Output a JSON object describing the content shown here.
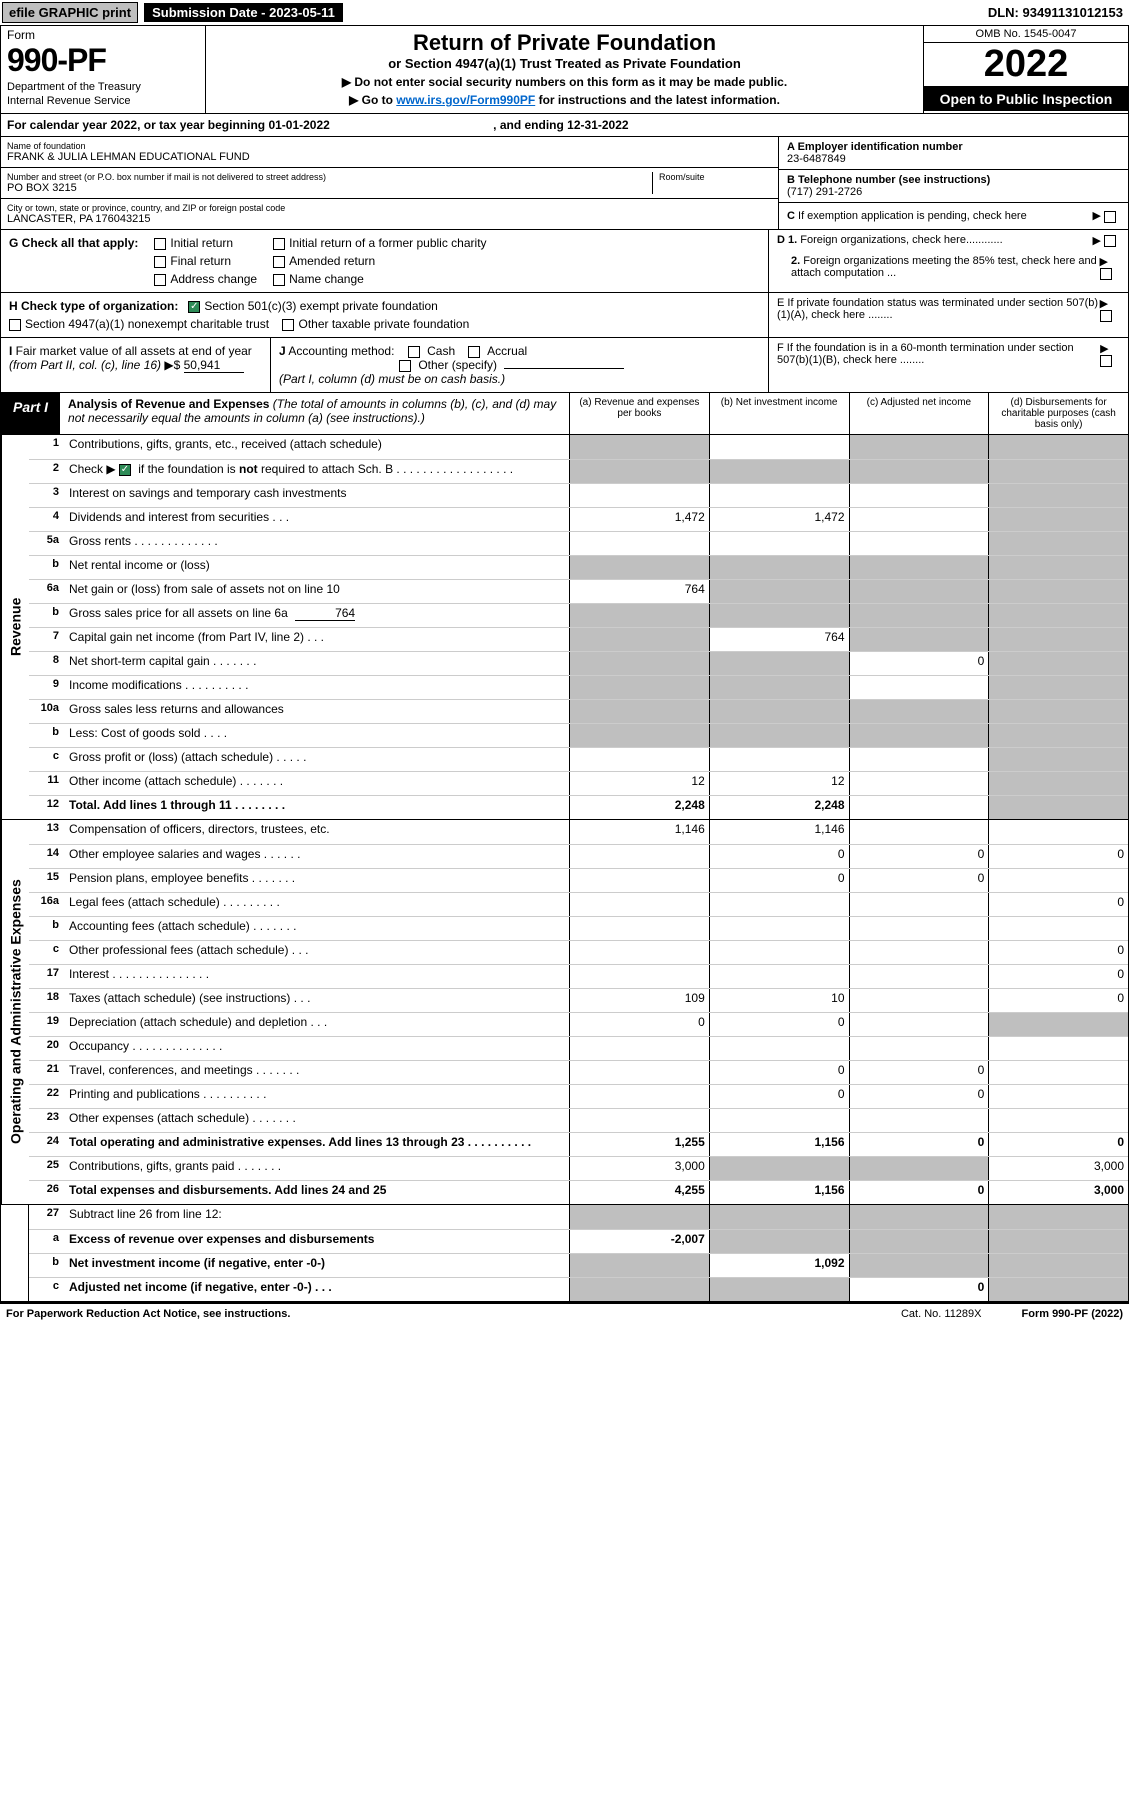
{
  "top": {
    "efile": "efile GRAPHIC print",
    "submission": "Submission Date - 2023-05-11",
    "dln": "DLN: 93491131012153"
  },
  "header": {
    "form_label": "Form",
    "form_num": "990-PF",
    "dept": "Department of the Treasury",
    "irs": "Internal Revenue Service",
    "title": "Return of Private Foundation",
    "subtitle": "or Section 4947(a)(1) Trust Treated as Private Foundation",
    "note1": "▶ Do not enter social security numbers on this form as it may be made public.",
    "note2_pre": "▶ Go to ",
    "note2_link": "www.irs.gov/Form990PF",
    "note2_post": " for instructions and the latest information.",
    "omb": "OMB No. 1545-0047",
    "year": "2022",
    "open": "Open to Public Inspection"
  },
  "cal": {
    "line": "For calendar year 2022, or tax year beginning 01-01-2022",
    "ending": ", and ending 12-31-2022"
  },
  "foundation": {
    "name_label": "Name of foundation",
    "name": "FRANK & JULIA LEHMAN EDUCATIONAL FUND",
    "addr_label": "Number and street (or P.O. box number if mail is not delivered to street address)",
    "addr": "PO BOX 3215",
    "room_label": "Room/suite",
    "city_label": "City or town, state or province, country, and ZIP or foreign postal code",
    "city": "LANCASTER, PA  176043215",
    "ein_label": "A Employer identification number",
    "ein": "23-6487849",
    "phone_label": "B Telephone number (see instructions)",
    "phone": "(717) 291-2726",
    "c_label": "C If exemption application is pending, check here"
  },
  "g": {
    "label": "G Check all that apply:",
    "initial": "Initial return",
    "initial_former": "Initial return of a former public charity",
    "final": "Final return",
    "amended": "Amended return",
    "address": "Address change",
    "name_change": "Name change"
  },
  "d": {
    "d1": "D 1. Foreign organizations, check here............",
    "d2": "2. Foreign organizations meeting the 85% test, check here and attach computation ..."
  },
  "h": {
    "label": "H Check type of organization:",
    "sec501": "Section 501(c)(3) exempt private foundation",
    "sec4947": "Section 4947(a)(1) nonexempt charitable trust",
    "other_taxable": "Other taxable private foundation"
  },
  "e": {
    "label": "E  If private foundation status was terminated under section 507(b)(1)(A), check here ........"
  },
  "i": {
    "label": "I Fair market value of all assets at end of year (from Part II, col. (c), line 16) ▶$",
    "value": "50,941"
  },
  "j": {
    "label": "J Accounting method:",
    "cash": "Cash",
    "accrual": "Accrual",
    "other": "Other (specify)",
    "note": "(Part I, column (d) must be on cash basis.)"
  },
  "f": {
    "label": "F  If the foundation is in a 60-month termination under section 507(b)(1)(B), check here ........"
  },
  "part1": {
    "label": "Part I",
    "title": "Analysis of Revenue and Expenses",
    "note": "(The total of amounts in columns (b), (c), and (d) may not necessarily equal the amounts in column (a) (see instructions).)",
    "col_a": "(a)   Revenue and expenses per books",
    "col_b": "(b)   Net investment income",
    "col_c": "(c)   Adjusted net income",
    "col_d": "(d)   Disbursements for charitable purposes (cash basis only)"
  },
  "side": {
    "revenue": "Revenue",
    "expenses": "Operating and Administrative Expenses"
  },
  "rows": {
    "r1": {
      "n": "1",
      "d": "Contributions, gifts, grants, etc., received (attach schedule)"
    },
    "r2": {
      "n": "2",
      "d_pre": "Check ▶ ",
      "d_post": " if the foundation is not required to attach Sch. B    .   .   .   .   .   .   .   .   .   .   .   .   .   .   .   .   .   .",
      "d_bold_not": "not"
    },
    "r3": {
      "n": "3",
      "d": "Interest on savings and temporary cash investments"
    },
    "r4": {
      "n": "4",
      "d": "Dividends and interest from securities    .    .    .",
      "a": "1,472",
      "b": "1,472"
    },
    "r5a": {
      "n": "5a",
      "d": "Gross rents    .   .   .   .   .   .   .   .   .   .   .   .   ."
    },
    "r5b": {
      "n": "b",
      "d": "Net rental income or (loss) "
    },
    "r6a": {
      "n": "6a",
      "d": "Net gain or (loss) from sale of assets not on line 10",
      "a": "764"
    },
    "r6b": {
      "n": "b",
      "d": "Gross sales price for all assets on line 6a",
      "amt": "764"
    },
    "r7": {
      "n": "7",
      "d": "Capital gain net income (from Part IV, line 2)    .    .    .",
      "b": "764"
    },
    "r8": {
      "n": "8",
      "d": "Net short-term capital gain    .    .    .    .    .    .    .",
      "c": "0"
    },
    "r9": {
      "n": "9",
      "d": "Income modifications  .    .    .    .    .    .    .    .    .    ."
    },
    "r10a": {
      "n": "10a",
      "d": "Gross sales less returns and allowances"
    },
    "r10b": {
      "n": "b",
      "d": "Less: Cost of goods sold    .   .   .   ."
    },
    "r10c": {
      "n": "c",
      "d": "Gross profit or (loss) (attach schedule)    .    .    .    .    ."
    },
    "r11": {
      "n": "11",
      "d": "Other income (attach schedule)    .    .    .    .    .    .    .",
      "a": "12",
      "b": "12"
    },
    "r12": {
      "n": "12",
      "d": "Total. Add lines 1 through 11    .    .    .    .    .    .    .    .",
      "a": "2,248",
      "b": "2,248"
    },
    "r13": {
      "n": "13",
      "d": "Compensation of officers, directors, trustees, etc.",
      "a": "1,146",
      "b": "1,146"
    },
    "r14": {
      "n": "14",
      "d": "Other employee salaries and wages    .    .    .    .    .    .",
      "b": "0",
      "c": "0",
      "dd": "0"
    },
    "r15": {
      "n": "15",
      "d": "Pension plans, employee benefits    .    .    .    .    .    .    .",
      "b": "0",
      "c": "0"
    },
    "r16a": {
      "n": "16a",
      "d": "Legal fees (attach schedule)  .    .    .    .    .    .    .    .    .",
      "dd": "0"
    },
    "r16b": {
      "n": "b",
      "d": "Accounting fees (attach schedule)    .    .    .    .    .    .    ."
    },
    "r16c": {
      "n": "c",
      "d": "Other professional fees (attach schedule)    .    .    .",
      "dd": "0"
    },
    "r17": {
      "n": "17",
      "d": "Interest  .    .    .    .    .    .    .    .    .    .    .    .    .    .    .",
      "dd": "0"
    },
    "r18": {
      "n": "18",
      "d": "Taxes (attach schedule) (see instructions)    .    .    .",
      "a": "109",
      "b": "10",
      "dd": "0"
    },
    "r19": {
      "n": "19",
      "d": "Depreciation (attach schedule) and depletion    .    .    .",
      "a": "0",
      "b": "0"
    },
    "r20": {
      "n": "20",
      "d": "Occupancy  .    .    .    .    .    .    .    .    .    .    .    .    .    ."
    },
    "r21": {
      "n": "21",
      "d": "Travel, conferences, and meetings  .    .    .    .    .    .    .",
      "b": "0",
      "c": "0"
    },
    "r22": {
      "n": "22",
      "d": "Printing and publications  .    .    .    .    .    .    .    .    .    .",
      "b": "0",
      "c": "0"
    },
    "r23": {
      "n": "23",
      "d": "Other expenses (attach schedule)    .    .    .    .    .    .    ."
    },
    "r24": {
      "n": "24",
      "d": "Total operating and administrative expenses. Add lines 13 through 23    .    .    .    .    .    .    .    .    .    .",
      "a": "1,255",
      "b": "1,156",
      "c": "0",
      "dd": "0"
    },
    "r25": {
      "n": "25",
      "d": "Contributions, gifts, grants paid    .    .    .    .    .    .    .",
      "a": "3,000",
      "dd": "3,000"
    },
    "r26": {
      "n": "26",
      "d": "Total expenses and disbursements. Add lines 24 and 25",
      "a": "4,255",
      "b": "1,156",
      "c": "0",
      "dd": "3,000"
    },
    "r27": {
      "n": "27",
      "d": "Subtract line 26 from line 12:"
    },
    "r27a": {
      "n": "a",
      "d": "Excess of revenue over expenses and disbursements",
      "a": "-2,007"
    },
    "r27b": {
      "n": "b",
      "d": "Net investment income (if negative, enter -0-)",
      "b": "1,092"
    },
    "r27c": {
      "n": "c",
      "d": "Adjusted net income (if negative, enter -0-)    .    .    .",
      "c": "0"
    }
  },
  "footer": {
    "paperwork": "For Paperwork Reduction Act Notice, see instructions.",
    "cat": "Cat. No. 11289X",
    "form": "Form 990-PF (2022)"
  }
}
